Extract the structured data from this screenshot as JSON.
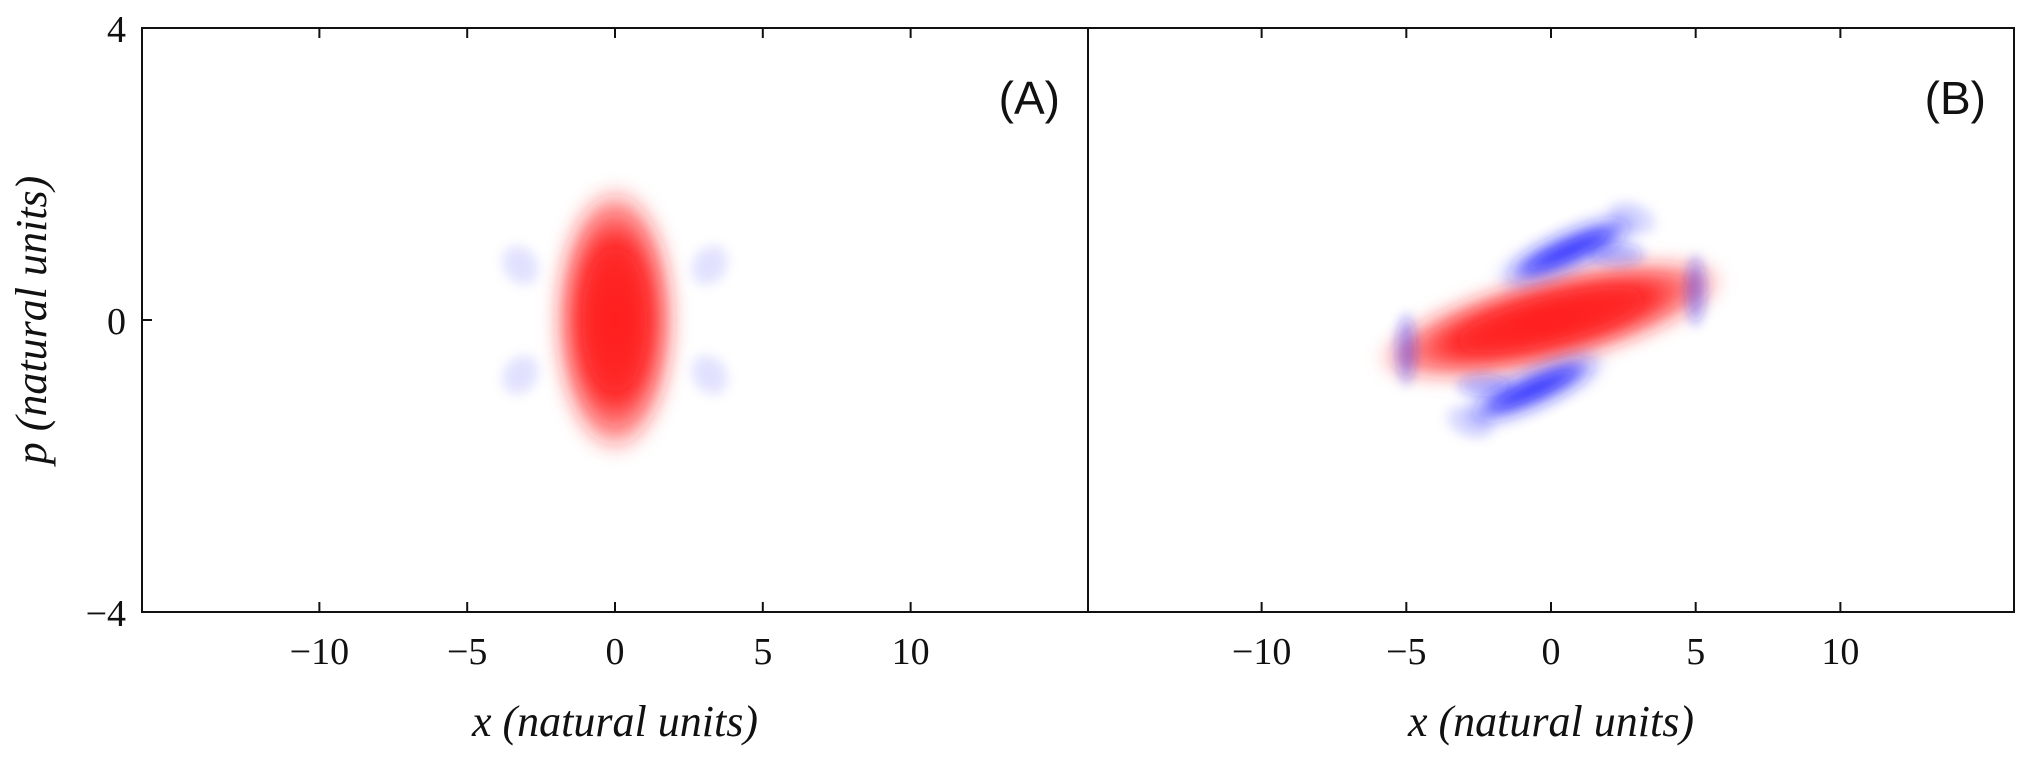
{
  "chart_data": [
    {
      "type": "heatmap",
      "panel_label": "(A)",
      "xlabel": {
        "var": "x",
        "unit": "(natural units)"
      },
      "ylabel": {
        "var": "p",
        "unit": "(natural units)"
      },
      "xlim": [
        -16,
        16
      ],
      "ylim": [
        -4,
        4
      ],
      "x_ticks": [
        {
          "value": -10,
          "label": "−10"
        },
        {
          "value": -5,
          "label": "−5"
        },
        {
          "value": 0,
          "label": "0"
        },
        {
          "value": 5,
          "label": "5"
        },
        {
          "value": 10,
          "label": "10"
        }
      ],
      "y_ticks": [
        {
          "value": 4,
          "label": "4"
        },
        {
          "value": 0,
          "label": "0"
        },
        {
          "value": -4,
          "label": "−4"
        }
      ],
      "colors": {
        "positive": "#ff1a1a",
        "negative": "#1a1aff"
      },
      "features": [
        {
          "sign": "positive",
          "cx": 0.0,
          "cy": 0.0,
          "rx": 2.1,
          "ry": 1.85,
          "angle": 0,
          "strength": 1.0
        },
        {
          "sign": "negative",
          "cx": -3.2,
          "cy": 0.75,
          "rx": 0.7,
          "ry": 0.35,
          "angle": 35,
          "strength": 0.12
        },
        {
          "sign": "negative",
          "cx": 3.2,
          "cy": 0.75,
          "rx": 0.7,
          "ry": 0.35,
          "angle": -35,
          "strength": 0.12
        },
        {
          "sign": "negative",
          "cx": -3.2,
          "cy": -0.75,
          "rx": 0.7,
          "ry": 0.35,
          "angle": -35,
          "strength": 0.12
        },
        {
          "sign": "negative",
          "cx": 3.2,
          "cy": -0.75,
          "rx": 0.7,
          "ry": 0.35,
          "angle": 35,
          "strength": 0.12
        }
      ]
    },
    {
      "type": "heatmap",
      "panel_label": "(B)",
      "xlabel": {
        "var": "x",
        "unit": "(natural units)"
      },
      "ylabel": {
        "var": "",
        "unit": ""
      },
      "xlim": [
        -16,
        16
      ],
      "ylim": [
        -4,
        4
      ],
      "x_ticks": [
        {
          "value": -10,
          "label": "−10"
        },
        {
          "value": -5,
          "label": "−5"
        },
        {
          "value": 0,
          "label": "0"
        },
        {
          "value": 5,
          "label": "5"
        },
        {
          "value": 10,
          "label": "10"
        }
      ],
      "y_ticks": [],
      "colors": {
        "positive": "#ff1a1a",
        "negative": "#1a1aff"
      },
      "features": [
        {
          "sign": "positive",
          "cx": 0.0,
          "cy": 0.0,
          "rx": 6.2,
          "ry": 0.62,
          "angle": 14,
          "strength": 1.0
        },
        {
          "sign": "negative",
          "cx": 0.6,
          "cy": 0.95,
          "rx": 2.6,
          "ry": 0.22,
          "angle": 24,
          "strength": 0.95
        },
        {
          "sign": "negative",
          "cx": -0.6,
          "cy": -0.95,
          "rx": 2.6,
          "ry": 0.22,
          "angle": 24,
          "strength": 0.95
        },
        {
          "sign": "negative",
          "cx": -5.0,
          "cy": -0.4,
          "rx": 0.45,
          "ry": 0.55,
          "angle": 0,
          "strength": 0.35
        },
        {
          "sign": "negative",
          "cx": 5.0,
          "cy": 0.4,
          "rx": 0.45,
          "ry": 0.55,
          "angle": 0,
          "strength": 0.35
        },
        {
          "sign": "negative",
          "cx": -2.3,
          "cy": -0.9,
          "rx": 1.1,
          "ry": 0.2,
          "angle": 0,
          "strength": 0.3
        },
        {
          "sign": "negative",
          "cx": 2.3,
          "cy": 0.9,
          "rx": 1.1,
          "ry": 0.2,
          "angle": 0,
          "strength": 0.3
        },
        {
          "sign": "negative",
          "cx": -2.8,
          "cy": -1.4,
          "rx": 1.0,
          "ry": 0.25,
          "angle": -20,
          "strength": 0.15
        },
        {
          "sign": "negative",
          "cx": 2.8,
          "cy": 1.4,
          "rx": 1.0,
          "ry": 0.25,
          "angle": -20,
          "strength": 0.15
        }
      ]
    }
  ]
}
